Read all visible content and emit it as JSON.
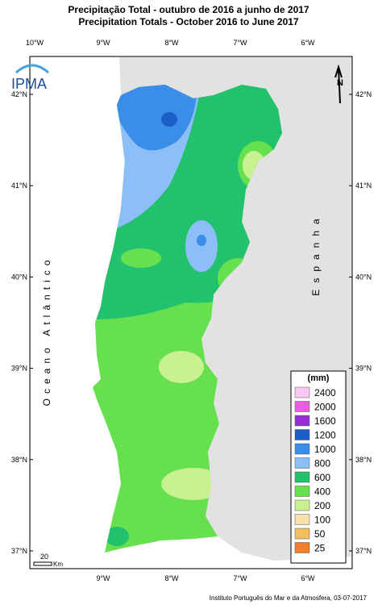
{
  "header": {
    "title_pt": "Precipitação Total  - outubro de 2016 a junho de 2017",
    "title_en": "Precipitation Totals - October 2016  to June 2017"
  },
  "longitudes": [
    "10°W",
    "9°W",
    "8°W",
    "7°W",
    "6°W"
  ],
  "latitudes": [
    "42°N",
    "41°N",
    "40°N",
    "39°N",
    "38°N",
    "37°N"
  ],
  "logo": "IPMA",
  "north": "N",
  "ocean_label": "Oceano Atlântico",
  "country_label": "Espanha",
  "legend": {
    "unit": "(mm)",
    "items": [
      {
        "value": 2400,
        "color": "#fbc8f4"
      },
      {
        "value": 2000,
        "color": "#ea5ee4"
      },
      {
        "value": 1600,
        "color": "#9a2ed6"
      },
      {
        "value": 1200,
        "color": "#1c5ec8"
      },
      {
        "value": 1000,
        "color": "#3a8de8"
      },
      {
        "value": 800,
        "color": "#8cbff8"
      },
      {
        "value": 600,
        "color": "#22c16e"
      },
      {
        "value": 400,
        "color": "#66e04e"
      },
      {
        "value": 200,
        "color": "#c9f192"
      },
      {
        "value": 100,
        "color": "#f8e0aa"
      },
      {
        "value": 50,
        "color": "#f0c060"
      },
      {
        "value": 25,
        "color": "#f08030"
      }
    ]
  },
  "scale": {
    "value": 20,
    "unit": "Km"
  },
  "credit": "Instituto Português do Mar e da Atmosfera, 03-07-2017"
}
